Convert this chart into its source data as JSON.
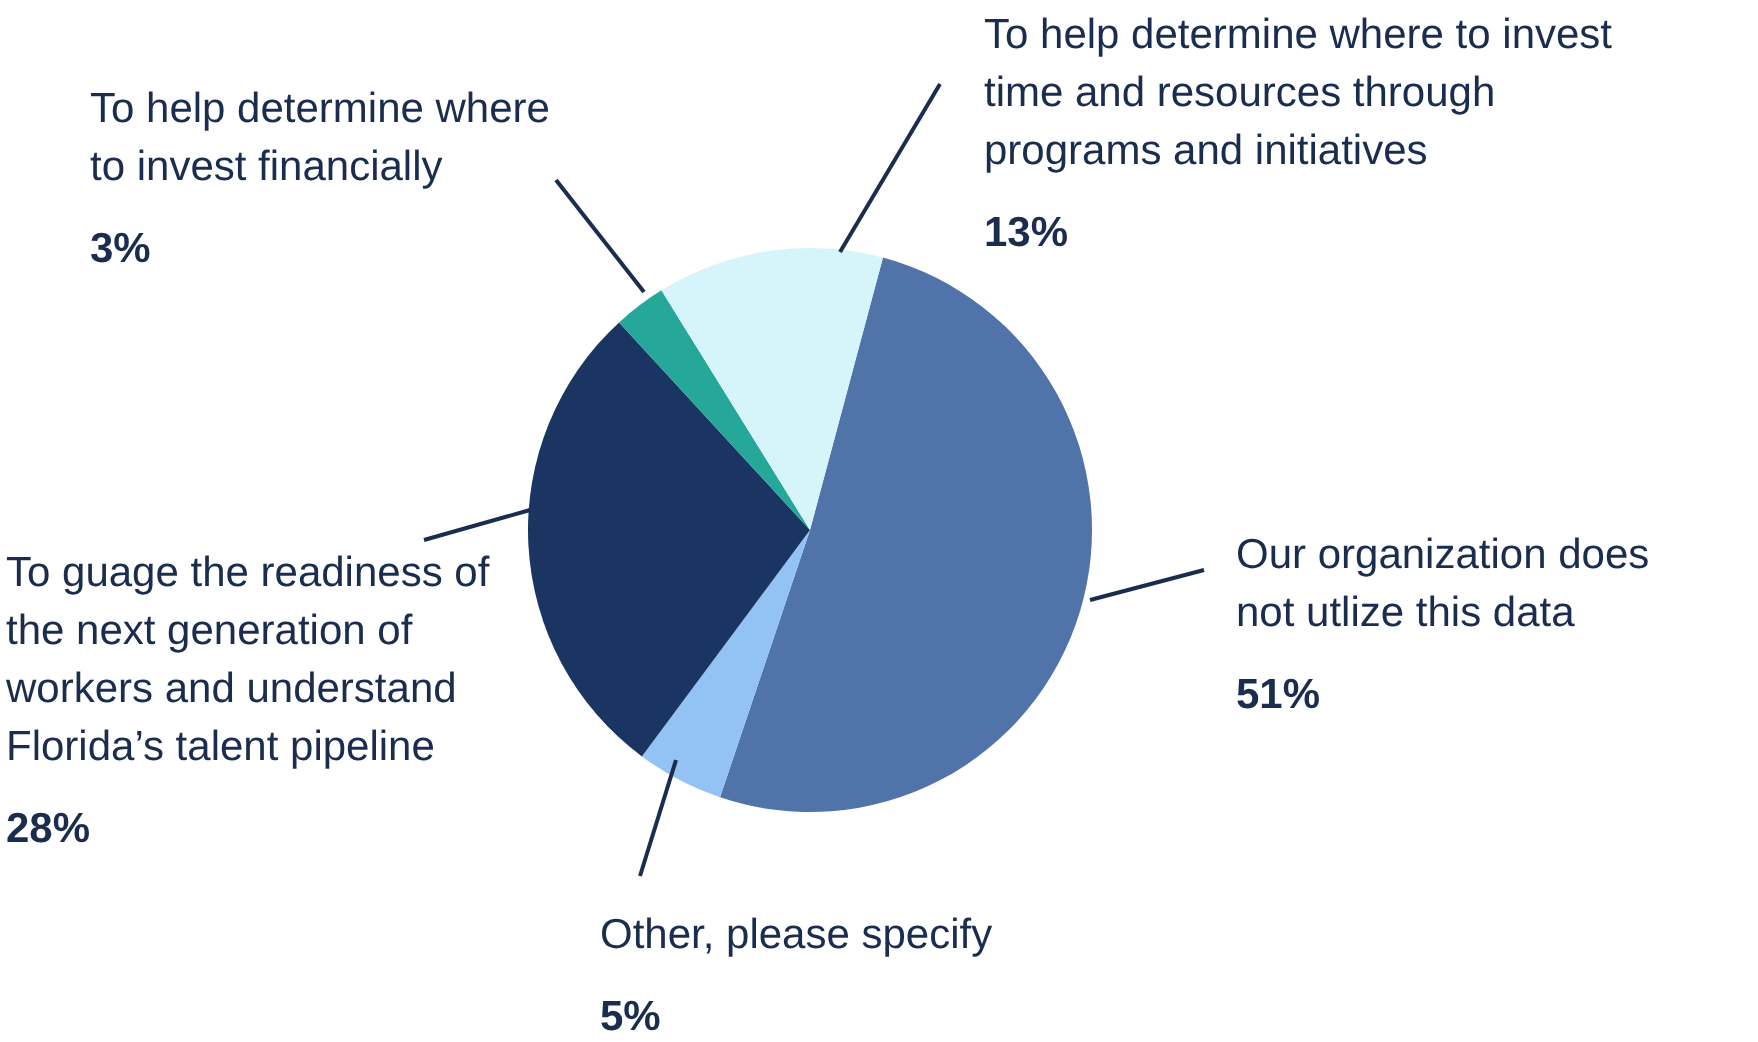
{
  "chart_data": {
    "type": "pie",
    "categories": [
      "Our organization does not utlize this data",
      "Other, please specify",
      "To guage the readiness of the next generation of workers and understand Florida’s talent pipeline",
      "To help determine where to invest financially",
      "To help determine where to invest time and resources through programs and initiatives"
    ],
    "values": [
      51,
      5,
      28,
      3,
      13
    ],
    "value_labels": [
      "51%",
      "5%",
      "28%",
      "3%",
      "13%"
    ],
    "colors": [
      "#5073aa",
      "#93c2f5",
      "#1b3562",
      "#25a89a",
      "#d5f5fb"
    ]
  }
}
